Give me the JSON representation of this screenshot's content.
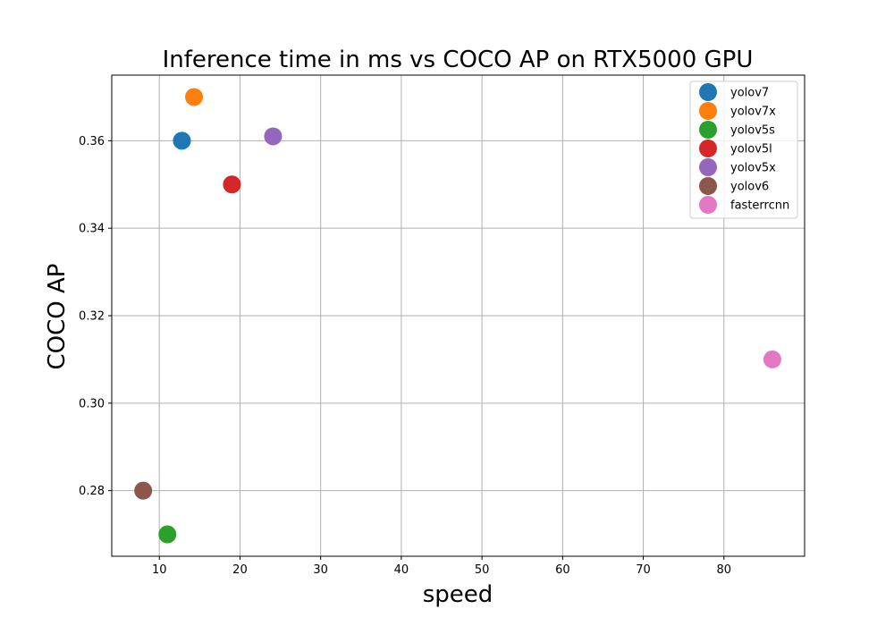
{
  "chart_data": {
    "type": "scatter",
    "title": "Inference time in ms vs COCO AP on RTX5000 GPU",
    "xlabel": "speed",
    "ylabel": "COCO AP",
    "xlim": [
      4.1,
      90.0
    ],
    "ylim": [
      0.265,
      0.375
    ],
    "xticks": [
      10,
      20,
      30,
      40,
      50,
      60,
      70,
      80
    ],
    "yticks": [
      0.28,
      0.3,
      0.32,
      0.34,
      0.36
    ],
    "ytick_labels": [
      "0.28",
      "0.30",
      "0.32",
      "0.34",
      "0.36"
    ],
    "grid": true,
    "legend_position": "top-right",
    "series": [
      {
        "name": "yolov7",
        "x": 12.8,
        "y": 0.36,
        "color": "#1f77b4"
      },
      {
        "name": "yolov7x",
        "x": 14.3,
        "y": 0.37,
        "color": "#ff7f0e"
      },
      {
        "name": "yolov5s",
        "x": 11.0,
        "y": 0.27,
        "color": "#2ca02c"
      },
      {
        "name": "yolov5l",
        "x": 19.0,
        "y": 0.35,
        "color": "#d62728"
      },
      {
        "name": "yolov5x",
        "x": 24.1,
        "y": 0.361,
        "color": "#9467bd"
      },
      {
        "name": "yolov6",
        "x": 8.0,
        "y": 0.28,
        "color": "#8c564b"
      },
      {
        "name": "fasterrcnn",
        "x": 86.0,
        "y": 0.31,
        "color": "#e377c2"
      }
    ]
  }
}
